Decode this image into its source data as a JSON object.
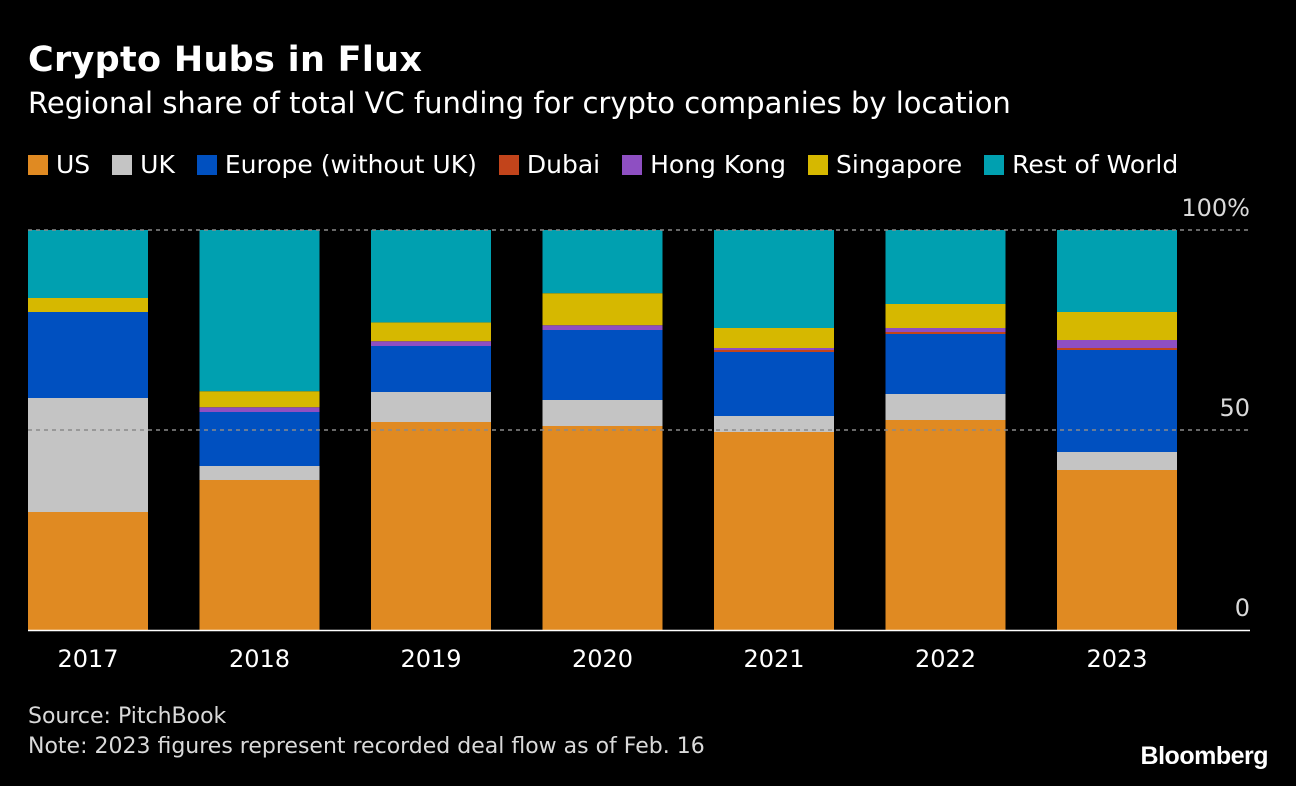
{
  "header": {
    "title": "Crypto Hubs in Flux",
    "subtitle": "Regional share of total VC funding for crypto companies by location"
  },
  "footer": {
    "source": "Source: PitchBook",
    "note": "Note: 2023 figures represent recorded deal flow as of Feb. 16",
    "logo": "Bloomberg"
  },
  "chart_data": {
    "type": "bar",
    "stacked": true,
    "title": "Crypto Hubs in Flux",
    "subtitle": "Regional share of total VC funding for crypto companies by location",
    "xlabel": "",
    "ylabel": "",
    "ylim": [
      0,
      100
    ],
    "y_ticks": [
      {
        "value": 0,
        "label": "0"
      },
      {
        "value": 50,
        "label": "50"
      },
      {
        "value": 100,
        "label": "100%"
      }
    ],
    "grid": true,
    "legend_position": "top",
    "categories": [
      "2017",
      "2018",
      "2019",
      "2020",
      "2021",
      "2022",
      "2023"
    ],
    "series": [
      {
        "name": "US",
        "color": "#e08a22",
        "values": [
          29.5,
          37.5,
          52,
          51,
          49.5,
          52.5,
          40
        ]
      },
      {
        "name": "UK",
        "color": "#c4c4c4",
        "values": [
          28.5,
          3.5,
          7.5,
          6.5,
          4,
          6.5,
          4.5
        ]
      },
      {
        "name": "Europe (without UK)",
        "color": "#0050c0",
        "values": [
          21.5,
          13.5,
          11.5,
          17.5,
          16,
          15,
          25.5
        ]
      },
      {
        "name": "Dubai",
        "color": "#c2441b",
        "values": [
          0,
          0,
          0,
          0,
          0.5,
          0.5,
          0.5
        ]
      },
      {
        "name": "Hong Kong",
        "color": "#8e4fc2",
        "values": [
          0,
          1.2,
          1.2,
          1.2,
          0.5,
          1,
          2
        ]
      },
      {
        "name": "Singapore",
        "color": "#d6b800",
        "values": [
          3.5,
          4,
          4.7,
          8,
          5,
          6,
          7
        ]
      },
      {
        "name": "Rest of World",
        "color": "#00a0b0",
        "values": [
          17,
          40.3,
          23.1,
          15.8,
          24.5,
          18.5,
          20.5
        ]
      }
    ]
  }
}
